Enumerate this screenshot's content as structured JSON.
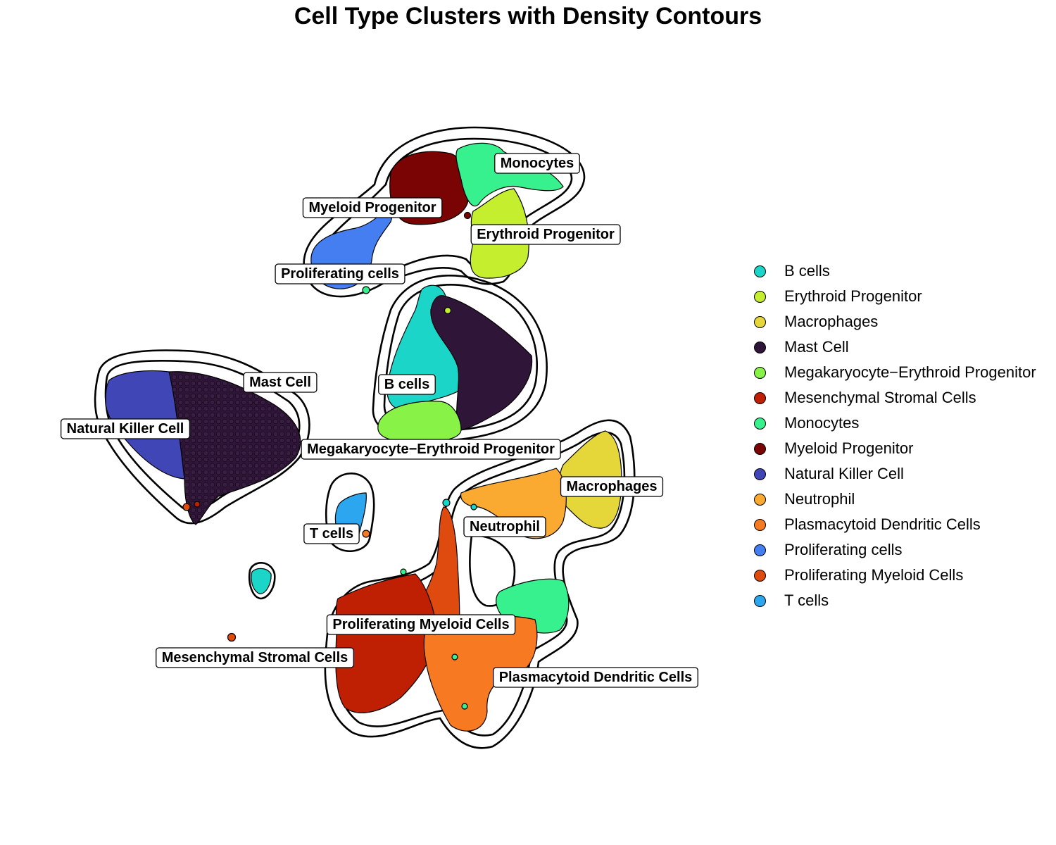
{
  "chart_data": {
    "type": "scatter",
    "title": "Cell Type Clusters with Density Contours",
    "xlabel": "",
    "ylabel": "",
    "grid": false,
    "axes_visible": false,
    "legend_position": "right",
    "density_contours": true,
    "series": [
      {
        "name": "B cells",
        "color": "#1BD6C8"
      },
      {
        "name": "Erythroid Progenitor",
        "color": "#C4EE2E"
      },
      {
        "name": "Macrophages",
        "color": "#E5D73A"
      },
      {
        "name": "Mast Cell",
        "color": "#2F1537"
      },
      {
        "name": "Megakaryocyte−Erythroid Progenitor",
        "color": "#88F246"
      },
      {
        "name": "Mesenchymal Stromal Cells",
        "color": "#BF1F02"
      },
      {
        "name": "Monocytes",
        "color": "#37F08E"
      },
      {
        "name": "Myeloid Progenitor",
        "color": "#7A0403"
      },
      {
        "name": "Natural Killer Cell",
        "color": "#4146B7"
      },
      {
        "name": "Neutrophil",
        "color": "#FAAA31"
      },
      {
        "name": "Plasmacytoid Dendritic Cells",
        "color": "#F77A22"
      },
      {
        "name": "Proliferating cells",
        "color": "#457EF0"
      },
      {
        "name": "Proliferating Myeloid Cells",
        "color": "#DF4A0F"
      },
      {
        "name": "T cells",
        "color": "#2BA6EF"
      }
    ],
    "cluster_labels": [
      "Monocytes",
      "Myeloid Progenitor",
      "Erythroid Progenitor",
      "Proliferating cells",
      "Mast Cell",
      "B cells",
      "Natural Killer Cell",
      "Megakaryocyte−Erythroid Progenitor",
      "Macrophages",
      "T cells",
      "Neutrophil",
      "Proliferating Myeloid Cells",
      "Mesenchymal Stromal Cells",
      "Plasmacytoid Dendritic Cells"
    ]
  }
}
